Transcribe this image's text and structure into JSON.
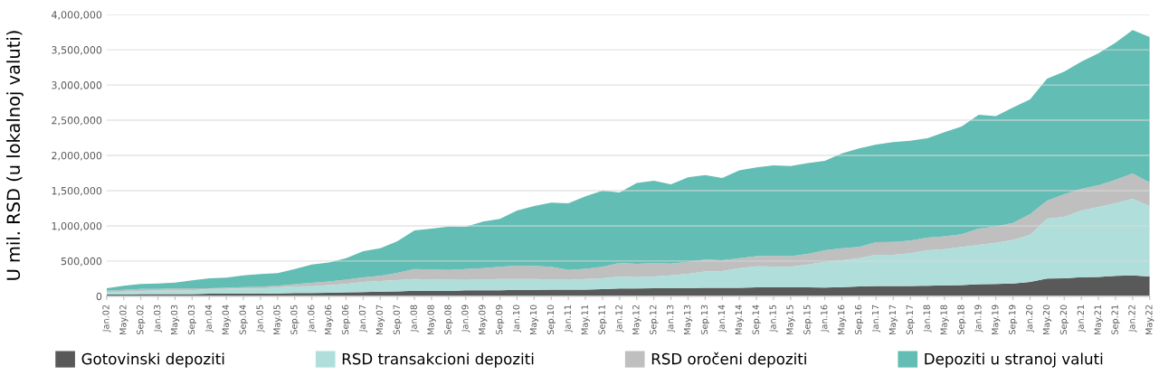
{
  "chart_data": {
    "type": "area",
    "stacked": true,
    "ylabel": "U mil. RSD (u lokalnoj valuti)",
    "categories": [
      "Jan.02",
      "May.02",
      "Sep.02",
      "Jan.03",
      "May.03",
      "Sep.03",
      "Jan.04",
      "May.04",
      "Sep.04",
      "Jan.05",
      "May.05",
      "Sep.05",
      "Jan.06",
      "May.06",
      "Sep.06",
      "Jan.07",
      "May.07",
      "Sep.07",
      "Jan.08",
      "May.08",
      "Sep.08",
      "Jan.09",
      "May.09",
      "Sep.09",
      "Jan.10",
      "May.10",
      "Sep.10",
      "Jan.11",
      "May.11",
      "Sep.11",
      "Jan.12",
      "May.12",
      "Sep.12",
      "Jan.13",
      "May.13",
      "Sep.13",
      "Jan.14",
      "May.14",
      "Sep.14",
      "Jan.15",
      "May.15",
      "Sep.15",
      "Jan.16",
      "May.16",
      "Sep.16",
      "Jan.17",
      "May.17",
      "Sep.17",
      "Jan.18",
      "May.18",
      "Sep.18",
      "Jan.19",
      "May.19",
      "Sep.19",
      "Jan.20",
      "May.20",
      "Sep.20",
      "Jan.21",
      "May.21",
      "Sep.21",
      "Jan.22",
      "May.22"
    ],
    "series": [
      {
        "name": "Gotovinski depoziti",
        "color": "#595959",
        "values": [
          25000,
          25000,
          30000,
          30000,
          30000,
          30000,
          35000,
          35000,
          40000,
          35000,
          40000,
          45000,
          45000,
          50000,
          55000,
          60000,
          65000,
          70000,
          77000,
          75000,
          75000,
          85000,
          85000,
          85000,
          90000,
          90000,
          95000,
          95000,
          95000,
          100000,
          110000,
          110000,
          115000,
          115000,
          115000,
          120000,
          120000,
          120000,
          125000,
          128000,
          125000,
          125000,
          124000,
          130000,
          140000,
          145000,
          145000,
          145000,
          150000,
          155000,
          160000,
          170000,
          175000,
          180000,
          205000,
          250000,
          255000,
          270000,
          275000,
          290000,
          295000,
          282000
        ]
      },
      {
        "name": "RSD transakcioni depoziti",
        "color": "#b0dfdb",
        "values": [
          35000,
          40000,
          45000,
          50000,
          50000,
          55000,
          68000,
          70000,
          70000,
          75000,
          85000,
          95000,
          96000,
          110000,
          120000,
          145000,
          150000,
          160000,
          167000,
          165000,
          160000,
          146000,
          155000,
          160000,
          154000,
          155000,
          145000,
          136000,
          150000,
          155000,
          172000,
          160000,
          165000,
          180000,
          205000,
          230000,
          239000,
          280000,
          300000,
          295000,
          295000,
          325000,
          363000,
          380000,
          400000,
          445000,
          445000,
          465000,
          504000,
          515000,
          540000,
          561000,
          585000,
          620000,
          667000,
          853000,
          873000,
          948000,
          994000,
          1031000,
          1090000,
          1000000
        ]
      },
      {
        "name": "RSD oročeni depoziti",
        "color": "#bfbfbf",
        "values": [
          17000,
          25000,
          30000,
          25000,
          30000,
          30000,
          12000,
          15000,
          20000,
          25000,
          25000,
          30000,
          51000,
          50000,
          60000,
          64000,
          75000,
          103000,
          141000,
          140000,
          140000,
          154000,
          160000,
          175000,
          192000,
          185000,
          180000,
          141000,
          145000,
          165000,
          192000,
          190000,
          190000,
          167000,
          170000,
          170000,
          154000,
          140000,
          145000,
          154000,
          150000,
          150000,
          167000,
          170000,
          160000,
          179000,
          180000,
          180000,
          179000,
          180000,
          180000,
          231000,
          230000,
          240000,
          295000,
          256000,
          321000,
          308000,
          308000,
          333000,
          359000,
          333000
        ]
      },
      {
        "name": "Depoziti u stranoj valuti",
        "color": "#62bdb4",
        "values": [
          38000,
          60000,
          70000,
          75000,
          85000,
          110000,
          141000,
          145000,
          165000,
          180000,
          180000,
          215000,
          257000,
          270000,
          305000,
          372000,
          390000,
          449000,
          551000,
          580000,
          615000,
          602000,
          660000,
          680000,
          782000,
          850000,
          910000,
          949000,
          1030000,
          1080000,
          1000000,
          1150000,
          1170000,
          1128000,
          1200000,
          1200000,
          1166000,
          1250000,
          1260000,
          1282000,
          1280000,
          1290000,
          1269000,
          1350000,
          1400000,
          1385000,
          1420000,
          1420000,
          1411000,
          1480000,
          1530000,
          1615000,
          1570000,
          1640000,
          1628000,
          1731000,
          1743000,
          1807000,
          1872000,
          1948000,
          2038000,
          2065000
        ]
      }
    ],
    "ylim": [
      0,
      4000000
    ],
    "yticks": [
      {
        "value": 0,
        "label": "0"
      },
      {
        "value": 500000,
        "label": "500,000"
      },
      {
        "value": 1000000,
        "label": "1,000,000"
      },
      {
        "value": 1500000,
        "label": "1,500,000"
      },
      {
        "value": 2000000,
        "label": "2,000,000"
      },
      {
        "value": 2500000,
        "label": "2,500,000"
      },
      {
        "value": 3000000,
        "label": "3,000,000"
      },
      {
        "value": 3500000,
        "label": "3,500,000"
      },
      {
        "value": 4000000,
        "label": "4,000,000"
      }
    ],
    "grid": "y",
    "legend": "bottom"
  }
}
